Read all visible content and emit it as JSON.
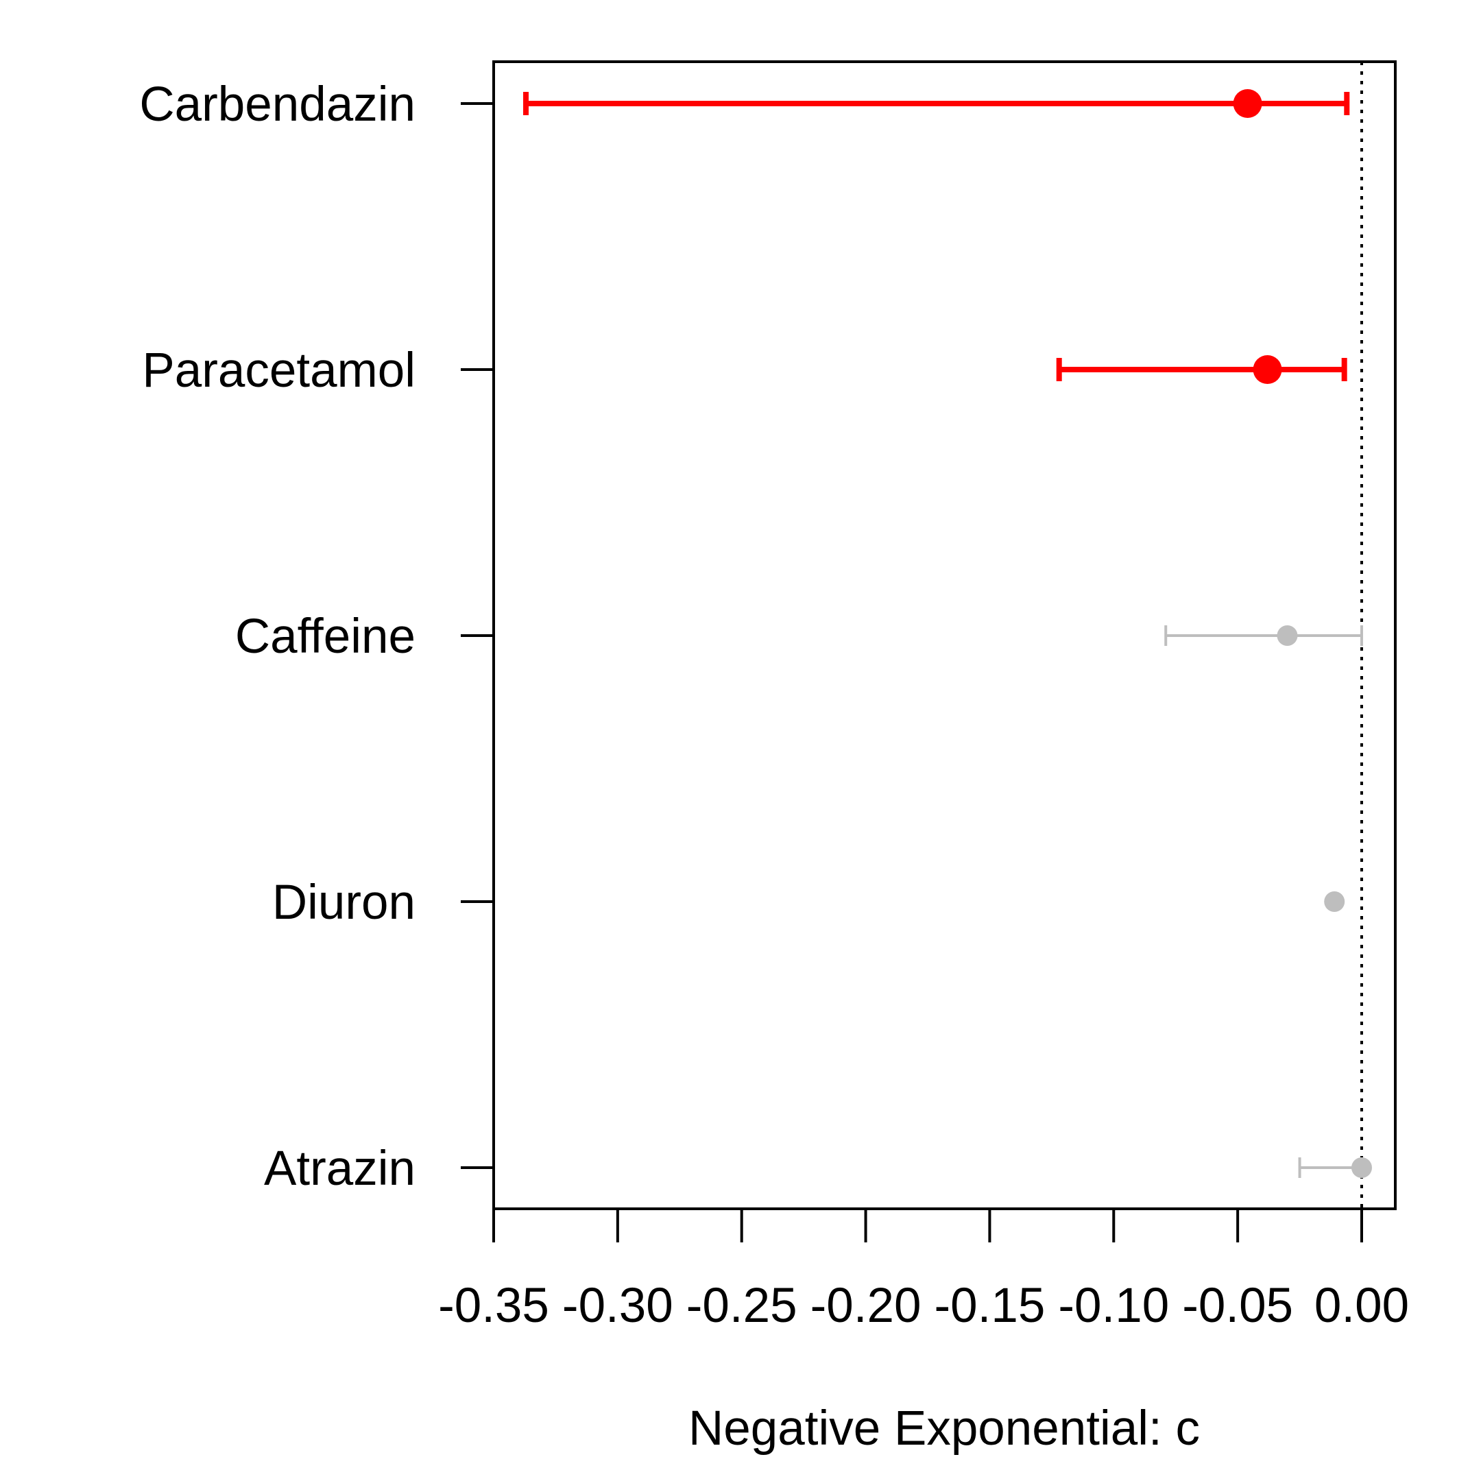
{
  "chart_data": {
    "type": "scatter",
    "subtype": "forest-plot",
    "title": "",
    "xlabel": "Negative Exponential: c",
    "ylabel": "",
    "xlim": [
      -0.35,
      0.013
    ],
    "x_ticks": [
      -0.35,
      -0.3,
      -0.25,
      -0.2,
      -0.15,
      -0.1,
      -0.05,
      0.0
    ],
    "x_tick_labels": [
      "-0.35",
      "-0.30",
      "-0.25",
      "-0.20",
      "-0.15",
      "-0.10",
      "-0.05",
      "0.00"
    ],
    "reference_line": {
      "x": 0.0,
      "style": "dotted",
      "color": "#000000"
    },
    "grid": false,
    "legend": "none",
    "colors": {
      "significant": "#ff0000",
      "not_significant": "#bebebe"
    },
    "categories": [
      "Carbendazin",
      "Paracetamol",
      "Caffeine",
      "Diuron",
      "Atrazin"
    ],
    "points": [
      {
        "label": "Carbendazin",
        "estimate": -0.046,
        "lower": -0.337,
        "upper": -0.006,
        "significant": true
      },
      {
        "label": "Paracetamol",
        "estimate": -0.038,
        "lower": -0.122,
        "upper": -0.007,
        "significant": true
      },
      {
        "label": "Caffeine",
        "estimate": -0.03,
        "lower": -0.079,
        "upper": 0.0,
        "significant": false
      },
      {
        "label": "Diuron",
        "estimate": -0.011,
        "lower": -0.011,
        "upper": -0.011,
        "significant": false
      },
      {
        "label": "Atrazin",
        "estimate": 0.0,
        "lower": -0.025,
        "upper": 0.0,
        "significant": false
      }
    ]
  }
}
